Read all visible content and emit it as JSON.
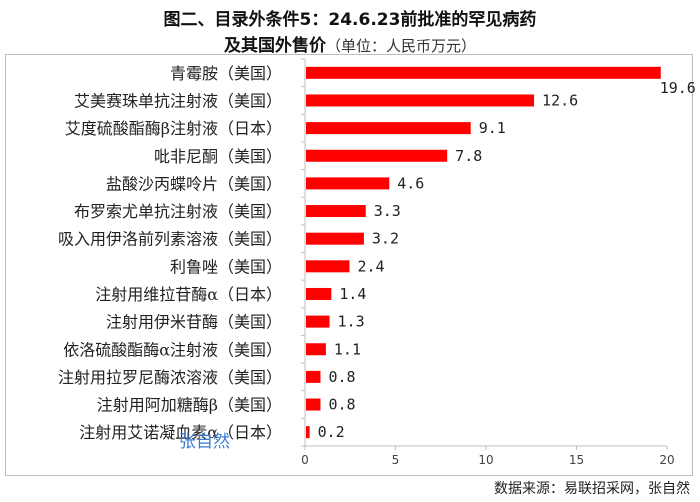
{
  "title_line1": "图二、目录外条件5：24.6.23前批准的罕见病药",
  "title_line2": "及其国外售价",
  "title_unit": "（单位：人民币万元）",
  "source": "数据来源：易联招采网，张自然",
  "watermark": "张自然",
  "colors": {
    "bar": "#ff0000",
    "axis": "#bfbfbf",
    "text": "#222222"
  },
  "chart_data": {
    "type": "bar",
    "orientation": "horizontal",
    "categories": [
      "青霉胺（美国）",
      "艾美赛珠单抗注射液（美国）",
      "艾度硫酸酯酶β注射液（日本）",
      "吡非尼酮（美国）",
      "盐酸沙丙蝶呤片（美国）",
      "布罗索尤单抗注射液（美国）",
      "吸入用伊洛前列素溶液（美国）",
      "利鲁唑（美国）",
      "注射用维拉苷酶α（日本）",
      "注射用伊米苷酶（美国）",
      "依洛硫酸酯酶α注射液（美国）",
      "注射用拉罗尼酶浓溶液（美国）",
      "注射用阿加糖酶β（美国）",
      "注射用艾诺凝血素α（日本）"
    ],
    "values": [
      19.6,
      12.6,
      9.1,
      7.8,
      4.6,
      3.3,
      3.2,
      2.4,
      1.4,
      1.3,
      1.1,
      0.8,
      0.8,
      0.2
    ],
    "value_labels": [
      "19.6",
      "12.6",
      "9.1",
      "7.8",
      "4.6",
      "3.3",
      "3.2",
      "2.4",
      "1.4",
      "1.3",
      "1.1",
      "0.8",
      "0.8",
      "0.2"
    ],
    "xlim": [
      0,
      20
    ],
    "xticks": [
      0,
      5,
      10,
      15,
      20
    ],
    "grid": false
  }
}
